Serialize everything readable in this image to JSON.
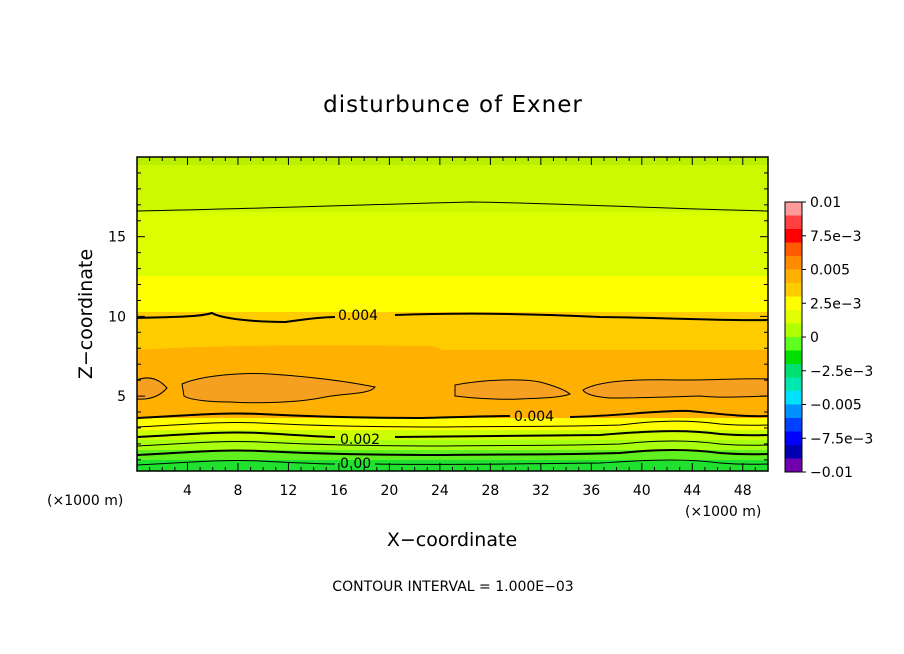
{
  "chart_data": {
    "type": "contour",
    "title": "disturbunce of Exner",
    "xlabel": "X−coordinate",
    "ylabel": "Z−coordinate",
    "x_unit_left": "(×1000 m)",
    "x_unit_right": "(×1000 m)",
    "xlim": [
      0,
      50
    ],
    "ylim": [
      0.3,
      20
    ],
    "x_ticks": [
      4,
      8,
      12,
      16,
      20,
      24,
      28,
      32,
      36,
      40,
      44,
      48
    ],
    "y_ticks": [
      5,
      10,
      15
    ],
    "colorbar": {
      "tick_labels": [
        "0.01",
        "7.5e−3",
        "0.005",
        "2.5e−3",
        "0",
        "−2.5e−3",
        "−0.005",
        "−7.5e−3",
        "−0.01"
      ],
      "colors": [
        "#ff9a9a",
        "#ff4040",
        "#ff0000",
        "#ff5a00",
        "#ff8c00",
        "#ffb000",
        "#ffcc00",
        "#ffff00",
        "#e0ff00",
        "#b0ff00",
        "#60ff20",
        "#00e000",
        "#00e070",
        "#00e8b0",
        "#00e0ff",
        "#0090ff",
        "#0040ff",
        "#0000ff",
        "#0000b0",
        "#7000b0"
      ]
    },
    "contour_labels": [
      "0.004",
      "0.004",
      "0.002",
      "0.00"
    ],
    "footer": "CONTOUR INTERVAL = 1.000E−03"
  }
}
